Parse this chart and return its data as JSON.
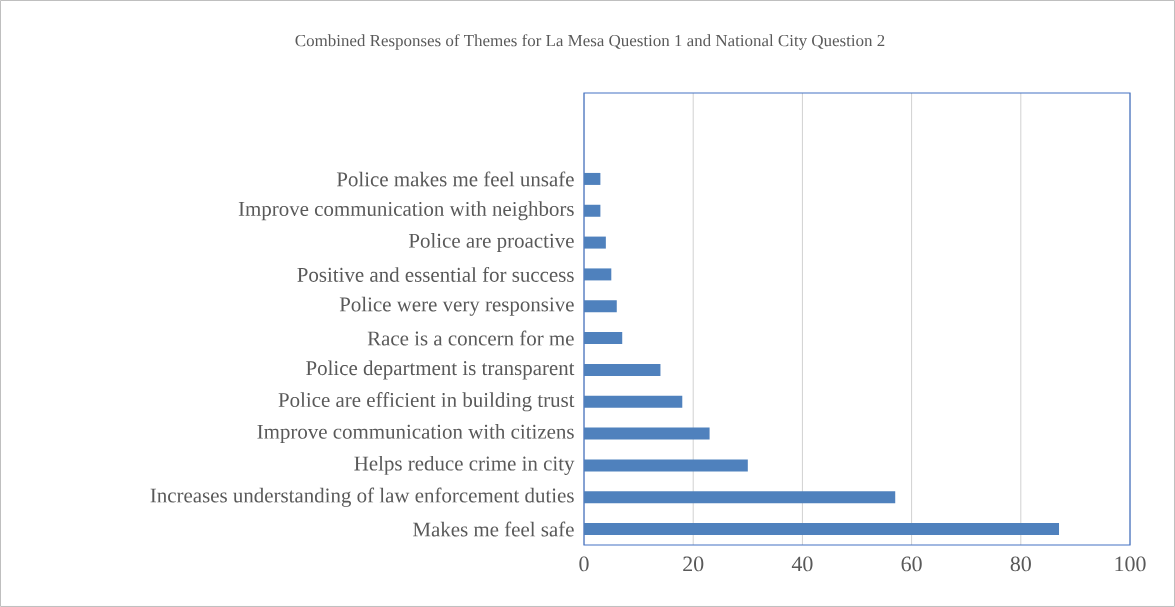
{
  "chart_data": {
    "type": "bar",
    "orientation": "horizontal",
    "title": "Combined Responses of Themes for La Mesa Question 1 and National City Question 2",
    "categories": [
      "Police makes me feel unsafe",
      "Improve communication with neighbors",
      "Police are proactive",
      "Positive and essential for success",
      "Police were very responsive",
      "Race is a concern for me",
      "Police department is transparent",
      "Police are efficient in building trust",
      "Improve communication with citizens",
      "Helps reduce crime in city",
      "Increases understanding of law enforcement duties",
      "Makes me feel safe"
    ],
    "values": [
      3,
      3,
      4,
      5,
      6,
      7,
      14,
      18,
      23,
      30,
      57,
      87
    ],
    "color": "#4f81bd",
    "xlim": [
      0,
      100
    ],
    "xticks": [
      0,
      20,
      40,
      60,
      80,
      100
    ],
    "grid": "x"
  }
}
